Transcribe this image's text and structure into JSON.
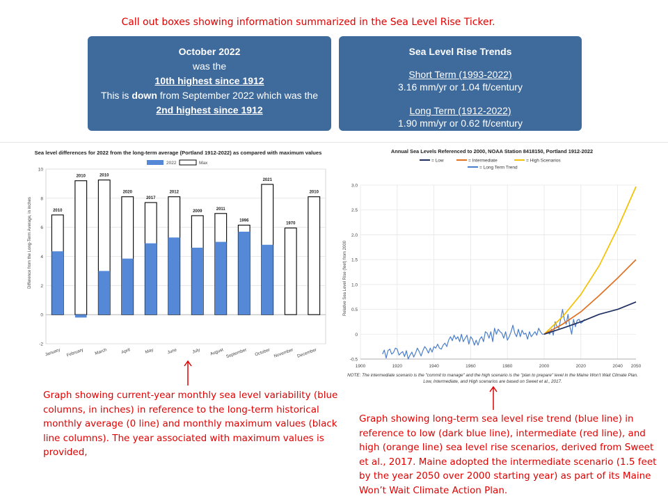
{
  "top_note": "Call out boxes showing information summarized in the Sea Level Rise Ticker.",
  "left_box": {
    "line1": "October 2022",
    "line2": "was the",
    "line3": "10th highest since 1912",
    "line4_pre": "This is ",
    "line4_bold": "down",
    "line4_post": " from September 2022 which was the",
    "line5": "2nd highest since 1912"
  },
  "right_box": {
    "title": "Sea Level Rise Trends",
    "short_label": "Short Term (1993-2022)",
    "short_value": "3.16 mm/yr or 1.04 ft/century",
    "long_label": "Long Term (1912-2022)",
    "long_value": "1.90 mm/yr or 0.62 ft/century"
  },
  "left_note": "Graph showing current-year monthly  sea level variability (blue columns, in inches) in reference to the long-term historical monthly average (0 line) and monthly  maximum values (black line columns).  The year associated with maximum  values is provided,",
  "right_note": "Graph showing long-term sea level rise trend (blue line) in reference to low (dark blue line), intermediate (red line), and high (orange line) sea level rise scenarios, derived from Sweet et al., 2017.  Maine adopted the intermediate scenario (1.5 feet by the year 2050 over 2000 starting year) as part of its Maine Won’t Wait Climate Action Plan.",
  "chart_data": [
    {
      "type": "bar",
      "title": "Sea level differences for 2022 from the long-term average (Portland 1912-2022) as compared with maximum values",
      "xlabel": "",
      "ylabel": "Difference from the Long-Term Average, in inches",
      "ylim": [
        -2,
        10
      ],
      "yticks": [
        -2,
        0,
        2,
        4,
        6,
        8,
        10
      ],
      "categories": [
        "January",
        "February",
        "March",
        "April",
        "May",
        "June",
        "July",
        "August",
        "September",
        "October",
        "November",
        "December"
      ],
      "series": [
        {
          "name": "2022",
          "color": "#5588d6",
          "values": [
            4.35,
            -0.2,
            3.0,
            3.85,
            4.9,
            5.3,
            4.6,
            5.0,
            5.7,
            4.8,
            null,
            null
          ]
        },
        {
          "name": "Max",
          "color": "#ffffff",
          "values": [
            6.85,
            9.2,
            9.25,
            8.1,
            7.7,
            8.1,
            6.8,
            6.95,
            6.15,
            8.95,
            5.95,
            8.1
          ]
        }
      ],
      "max_years": [
        "2010",
        "2010",
        "2010",
        "2020",
        "2017",
        "2012",
        "2009",
        "2011",
        "1996",
        "2021",
        "1970",
        "2010"
      ],
      "legend": "top-center"
    },
    {
      "type": "line",
      "title": "Annual Sea Levels Referenced to 2000, NOAA Station 8418150, Portland 1912-2022",
      "xlabel": "",
      "ylabel": "Relative Sea Level Rise (feet) from 2000",
      "xlim": [
        1900,
        2050
      ],
      "ylim": [
        -0.5,
        3.0
      ],
      "xticks": [
        1900,
        1920,
        1940,
        1960,
        1980,
        2000,
        2020,
        2040,
        2050
      ],
      "yticks": [
        "-0.5",
        "0",
        "0.5",
        "1.0",
        "1.5",
        "2.0",
        "2.5",
        "3.0"
      ],
      "legend_labels": [
        "= Low",
        "= Intermediate",
        "= High Scenarios",
        "= Long Term Trend"
      ],
      "series": [
        {
          "name": "Low",
          "color": "#1f2f5f",
          "x": [
            2000,
            2010,
            2020,
            2030,
            2040,
            2050
          ],
          "y": [
            0,
            0.12,
            0.25,
            0.4,
            0.5,
            0.65
          ]
        },
        {
          "name": "Intermediate",
          "color": "#e07020",
          "x": [
            2000,
            2010,
            2020,
            2030,
            2040,
            2050
          ],
          "y": [
            0,
            0.2,
            0.45,
            0.78,
            1.13,
            1.5
          ]
        },
        {
          "name": "High Scenarios",
          "color": "#f5c000",
          "x": [
            2000,
            2010,
            2020,
            2030,
            2040,
            2050
          ],
          "y": [
            0,
            0.35,
            0.8,
            1.38,
            2.13,
            2.97
          ]
        },
        {
          "name": "Long Term Trend",
          "color": "#4a7ec8",
          "x": [
            1912,
            1913,
            1914,
            1915,
            1916,
            1917,
            1918,
            1919,
            1920,
            1921,
            1922,
            1923,
            1924,
            1925,
            1926,
            1927,
            1928,
            1929,
            1930,
            1931,
            1932,
            1933,
            1934,
            1935,
            1936,
            1937,
            1938,
            1939,
            1940,
            1941,
            1942,
            1943,
            1944,
            1945,
            1946,
            1947,
            1948,
            1949,
            1950,
            1951,
            1952,
            1953,
            1954,
            1955,
            1956,
            1957,
            1958,
            1959,
            1960,
            1961,
            1962,
            1963,
            1964,
            1965,
            1966,
            1967,
            1968,
            1969,
            1970,
            1971,
            1972,
            1973,
            1974,
            1975,
            1976,
            1977,
            1978,
            1979,
            1980,
            1981,
            1982,
            1983,
            1984,
            1985,
            1986,
            1987,
            1988,
            1989,
            1990,
            1991,
            1992,
            1993,
            1994,
            1995,
            1996,
            1997,
            1998,
            1999,
            2000,
            2001,
            2002,
            2003,
            2004,
            2005,
            2006,
            2007,
            2008,
            2009,
            2010,
            2011,
            2012,
            2013,
            2014,
            2015,
            2016,
            2017,
            2018,
            2019,
            2020,
            2021,
            2022
          ],
          "y": [
            -0.4,
            -0.32,
            -0.48,
            -0.33,
            -0.3,
            -0.4,
            -0.37,
            -0.28,
            -0.3,
            -0.42,
            -0.38,
            -0.35,
            -0.45,
            -0.33,
            -0.5,
            -0.42,
            -0.36,
            -0.46,
            -0.38,
            -0.28,
            -0.35,
            -0.44,
            -0.33,
            -0.25,
            -0.3,
            -0.38,
            -0.28,
            -0.36,
            -0.25,
            -0.28,
            -0.2,
            -0.28,
            -0.3,
            -0.22,
            -0.18,
            -0.25,
            -0.12,
            -0.05,
            -0.13,
            -0.02,
            -0.1,
            -0.05,
            -0.15,
            0.0,
            -0.15,
            -0.08,
            -0.02,
            -0.2,
            -0.05,
            -0.1,
            -0.22,
            -0.12,
            -0.22,
            -0.1,
            -0.05,
            -0.15,
            0.05,
            0.02,
            -0.08,
            0.05,
            -0.15,
            0.12,
            0.0,
            0.1,
            0.05,
            0.02,
            -0.08,
            0.05,
            -0.12,
            -0.05,
            0.05,
            0.18,
            0.02,
            -0.05,
            0.1,
            -0.05,
            0.08,
            0.0,
            0.02,
            -0.1,
            0.05,
            -0.05,
            0.0,
            0.05,
            -0.02,
            0.12,
            0.05,
            0.0,
            0.0,
            0.02,
            0.05,
            0.0,
            0.1,
            -0.02,
            0.25,
            0.15,
            0.12,
            0.3,
            0.5,
            0.3,
            0.2,
            0.4,
            0.15,
            0.0,
            0.3,
            0.15,
            0.28,
            0.3,
            0.22,
            0.25,
            0.3
          ]
        }
      ],
      "note": "NOTE: The intermediate scenario is the \"commit to manage\" and the high scenario is the \"plan to prepare\" level in the Maine Won't Wait Climate Plan. Low, Intermediate, and High scenarios are based on Sweet et al., 2017."
    }
  ]
}
